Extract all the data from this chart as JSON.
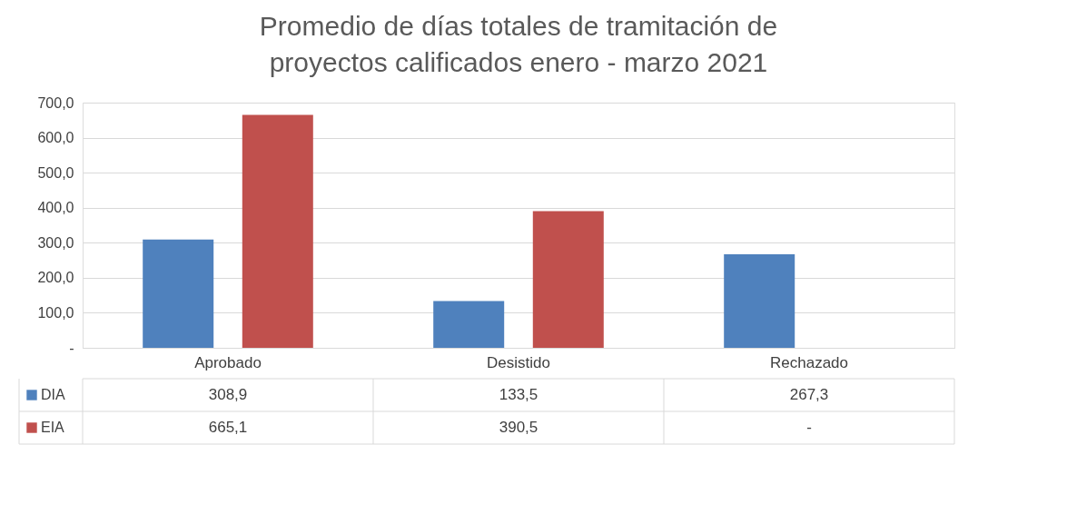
{
  "chart_data": {
    "type": "bar",
    "title": "Promedio de días totales de tramitación de proyectos calificados enero - marzo 2021",
    "categories": [
      "Aprobado",
      "Desistido",
      "Rechazado"
    ],
    "series": [
      {
        "name": "DIA",
        "color": "#4f81bd",
        "values": [
          308.9,
          133.5,
          267.3
        ],
        "value_labels": [
          "308,9",
          "133,5",
          "267,3"
        ]
      },
      {
        "name": "EIA",
        "color": "#c0504d",
        "values": [
          665.1,
          390.5,
          0
        ],
        "value_labels": [
          "665,1",
          "390,5",
          "-"
        ]
      }
    ],
    "ylim": [
      0,
      700
    ],
    "yticks": [
      {
        "value": 0,
        "label": "-"
      },
      {
        "value": 100,
        "label": "100,0"
      },
      {
        "value": 200,
        "label": "200,0"
      },
      {
        "value": 300,
        "label": "300,0"
      },
      {
        "value": 400,
        "label": "400,0"
      },
      {
        "value": 500,
        "label": "500,0"
      },
      {
        "value": 600,
        "label": "600,0"
      },
      {
        "value": 700,
        "label": "700,0"
      }
    ],
    "grid": "y",
    "legend": "bottom"
  }
}
